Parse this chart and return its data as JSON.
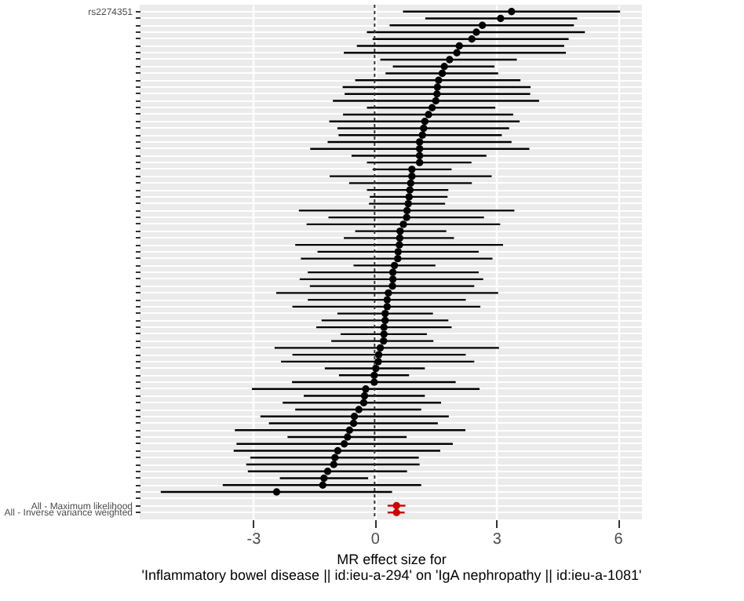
{
  "chart_data": {
    "type": "scatter",
    "orientation": "horizontal",
    "xlabel": "MR effect size for\n'Inflammatory bowel disease || id:ieu-a-294' on 'IgA nephropathy || id:ieu-a-1081'",
    "categories": [
      "rs2274351",
      null,
      null,
      null,
      null,
      null,
      null,
      null,
      null,
      null,
      null,
      null,
      null,
      null,
      null,
      null,
      null,
      null,
      null,
      null,
      null,
      null,
      null,
      null,
      null,
      null,
      null,
      null,
      null,
      null,
      null,
      null,
      null,
      null,
      null,
      null,
      null,
      null,
      null,
      null,
      null,
      null,
      null,
      null,
      null,
      null,
      null,
      null,
      null,
      null,
      null,
      null,
      null,
      null,
      null,
      null,
      null,
      null,
      null,
      null,
      null,
      null,
      null,
      null,
      null,
      null,
      null,
      null,
      null,
      null,
      null,
      null,
      "All - Maximum likelihood",
      "All - Inverse variance weighted"
    ],
    "series": [
      {
        "color": "#000000",
        "values": [
          3.38,
          3.11,
          2.66,
          2.51,
          2.4,
          2.09,
          2.03,
          1.85,
          1.72,
          1.67,
          1.58,
          1.55,
          1.54,
          1.51,
          1.42,
          1.33,
          1.24,
          1.21,
          1.18,
          1.11,
          1.11,
          1.11,
          1.11,
          0.92,
          0.92,
          0.89,
          0.87,
          0.85,
          0.83,
          0.8,
          0.79,
          0.71,
          0.63,
          0.62,
          0.61,
          0.58,
          0.57,
          0.49,
          0.45,
          0.45,
          0.44,
          0.34,
          0.31,
          0.31,
          0.26,
          0.26,
          0.23,
          0.23,
          0.22,
          0.14,
          0.1,
          0.09,
          0.03,
          -0.01,
          -0.01,
          -0.22,
          -0.25,
          -0.27,
          -0.39,
          -0.5,
          -0.52,
          -0.62,
          -0.67,
          -0.75,
          -0.91,
          -0.98,
          -1.01,
          -1.16,
          -1.25,
          -1.28,
          -2.42,
          null,
          null,
          null
        ],
        "errors": [
          [
            0.7,
            6.06
          ],
          [
            1.25,
            5.0
          ],
          [
            0.37,
            4.92
          ],
          [
            -0.19,
            5.19
          ],
          [
            -0.05,
            4.79
          ],
          [
            -0.44,
            4.68
          ],
          [
            -0.76,
            4.72
          ],
          [
            0.14,
            3.51
          ],
          [
            0.45,
            2.96
          ],
          [
            0.27,
            3.05
          ],
          [
            -0.48,
            3.6
          ],
          [
            -0.79,
            3.85
          ],
          [
            -0.74,
            3.84
          ],
          [
            -1.03,
            4.06
          ],
          [
            -0.19,
            2.98
          ],
          [
            -0.78,
            3.42
          ],
          [
            -1.12,
            3.58
          ],
          [
            -0.92,
            3.32
          ],
          [
            -0.89,
            3.14
          ],
          [
            -1.16,
            3.38
          ],
          [
            -1.59,
            3.82
          ],
          [
            -0.57,
            2.76
          ],
          [
            -0.19,
            2.39
          ],
          [
            -0.05,
            1.9
          ],
          [
            -1.11,
            2.89
          ],
          [
            -0.63,
            2.4
          ],
          [
            -0.19,
            1.82
          ],
          [
            -0.12,
            1.8
          ],
          [
            -0.14,
            1.74
          ],
          [
            -1.87,
            3.45
          ],
          [
            -1.14,
            2.7
          ],
          [
            -1.68,
            3.1
          ],
          [
            -0.48,
            1.77
          ],
          [
            -0.76,
            1.96
          ],
          [
            -1.96,
            3.17
          ],
          [
            -1.41,
            2.57
          ],
          [
            -1.82,
            2.91
          ],
          [
            -0.52,
            1.5
          ],
          [
            -1.65,
            2.57
          ],
          [
            -1.85,
            2.68
          ],
          [
            -1.6,
            2.46
          ],
          [
            -2.43,
            3.05
          ],
          [
            -1.65,
            2.25
          ],
          [
            -2.03,
            2.61
          ],
          [
            -0.92,
            1.44
          ],
          [
            -1.31,
            1.82
          ],
          [
            -1.44,
            1.9
          ],
          [
            -0.84,
            1.29
          ],
          [
            -1.07,
            1.45
          ],
          [
            -2.47,
            3.07
          ],
          [
            -2.03,
            2.25
          ],
          [
            -2.31,
            2.46
          ],
          [
            -1.23,
            1.24
          ],
          [
            -0.88,
            0.85
          ],
          [
            -2.04,
            2.0
          ],
          [
            -3.03,
            2.59
          ],
          [
            -1.75,
            1.24
          ],
          [
            -2.27,
            1.64
          ],
          [
            -1.96,
            1.15
          ],
          [
            -2.82,
            1.83
          ],
          [
            -2.61,
            1.56
          ],
          [
            -3.45,
            2.24
          ],
          [
            -2.15,
            0.79
          ],
          [
            -3.41,
            1.93
          ],
          [
            -3.48,
            1.62
          ],
          [
            -3.07,
            1.09
          ],
          [
            -3.17,
            1.11
          ],
          [
            -3.13,
            0.8
          ],
          [
            -2.34,
            -0.16
          ],
          [
            -3.75,
            1.15
          ],
          [
            -5.28,
            0.43
          ],
          null,
          null,
          null
        ]
      },
      {
        "color": "#cc0000",
        "values": [
          null,
          null,
          null,
          null,
          null,
          null,
          null,
          null,
          null,
          null,
          null,
          null,
          null,
          null,
          null,
          null,
          null,
          null,
          null,
          null,
          null,
          null,
          null,
          null,
          null,
          null,
          null,
          null,
          null,
          null,
          null,
          null,
          null,
          null,
          null,
          null,
          null,
          null,
          null,
          null,
          null,
          null,
          null,
          null,
          null,
          null,
          null,
          null,
          null,
          null,
          null,
          null,
          null,
          null,
          null,
          null,
          null,
          null,
          null,
          null,
          null,
          null,
          null,
          null,
          null,
          null,
          null,
          null,
          null,
          null,
          null,
          null,
          0.54,
          0.54
        ],
        "errors": [
          null,
          null,
          null,
          null,
          null,
          null,
          null,
          null,
          null,
          null,
          null,
          null,
          null,
          null,
          null,
          null,
          null,
          null,
          null,
          null,
          null,
          null,
          null,
          null,
          null,
          null,
          null,
          null,
          null,
          null,
          null,
          null,
          null,
          null,
          null,
          null,
          null,
          null,
          null,
          null,
          null,
          null,
          null,
          null,
          null,
          null,
          null,
          null,
          null,
          null,
          null,
          null,
          null,
          null,
          null,
          null,
          null,
          null,
          null,
          null,
          null,
          null,
          null,
          null,
          null,
          null,
          null,
          null,
          null,
          null,
          null,
          null,
          [
            0.32,
            0.76
          ],
          [
            0.32,
            0.74
          ]
        ]
      }
    ],
    "xlim": [
      -5.8,
      6.6
    ],
    "xticks": [
      -3,
      0,
      3,
      6
    ],
    "ref_lines": [
      {
        "axis": "x",
        "value": 0,
        "line_style": "dotted",
        "color": "#333333"
      }
    ],
    "grid": true,
    "marker": "circle"
  }
}
